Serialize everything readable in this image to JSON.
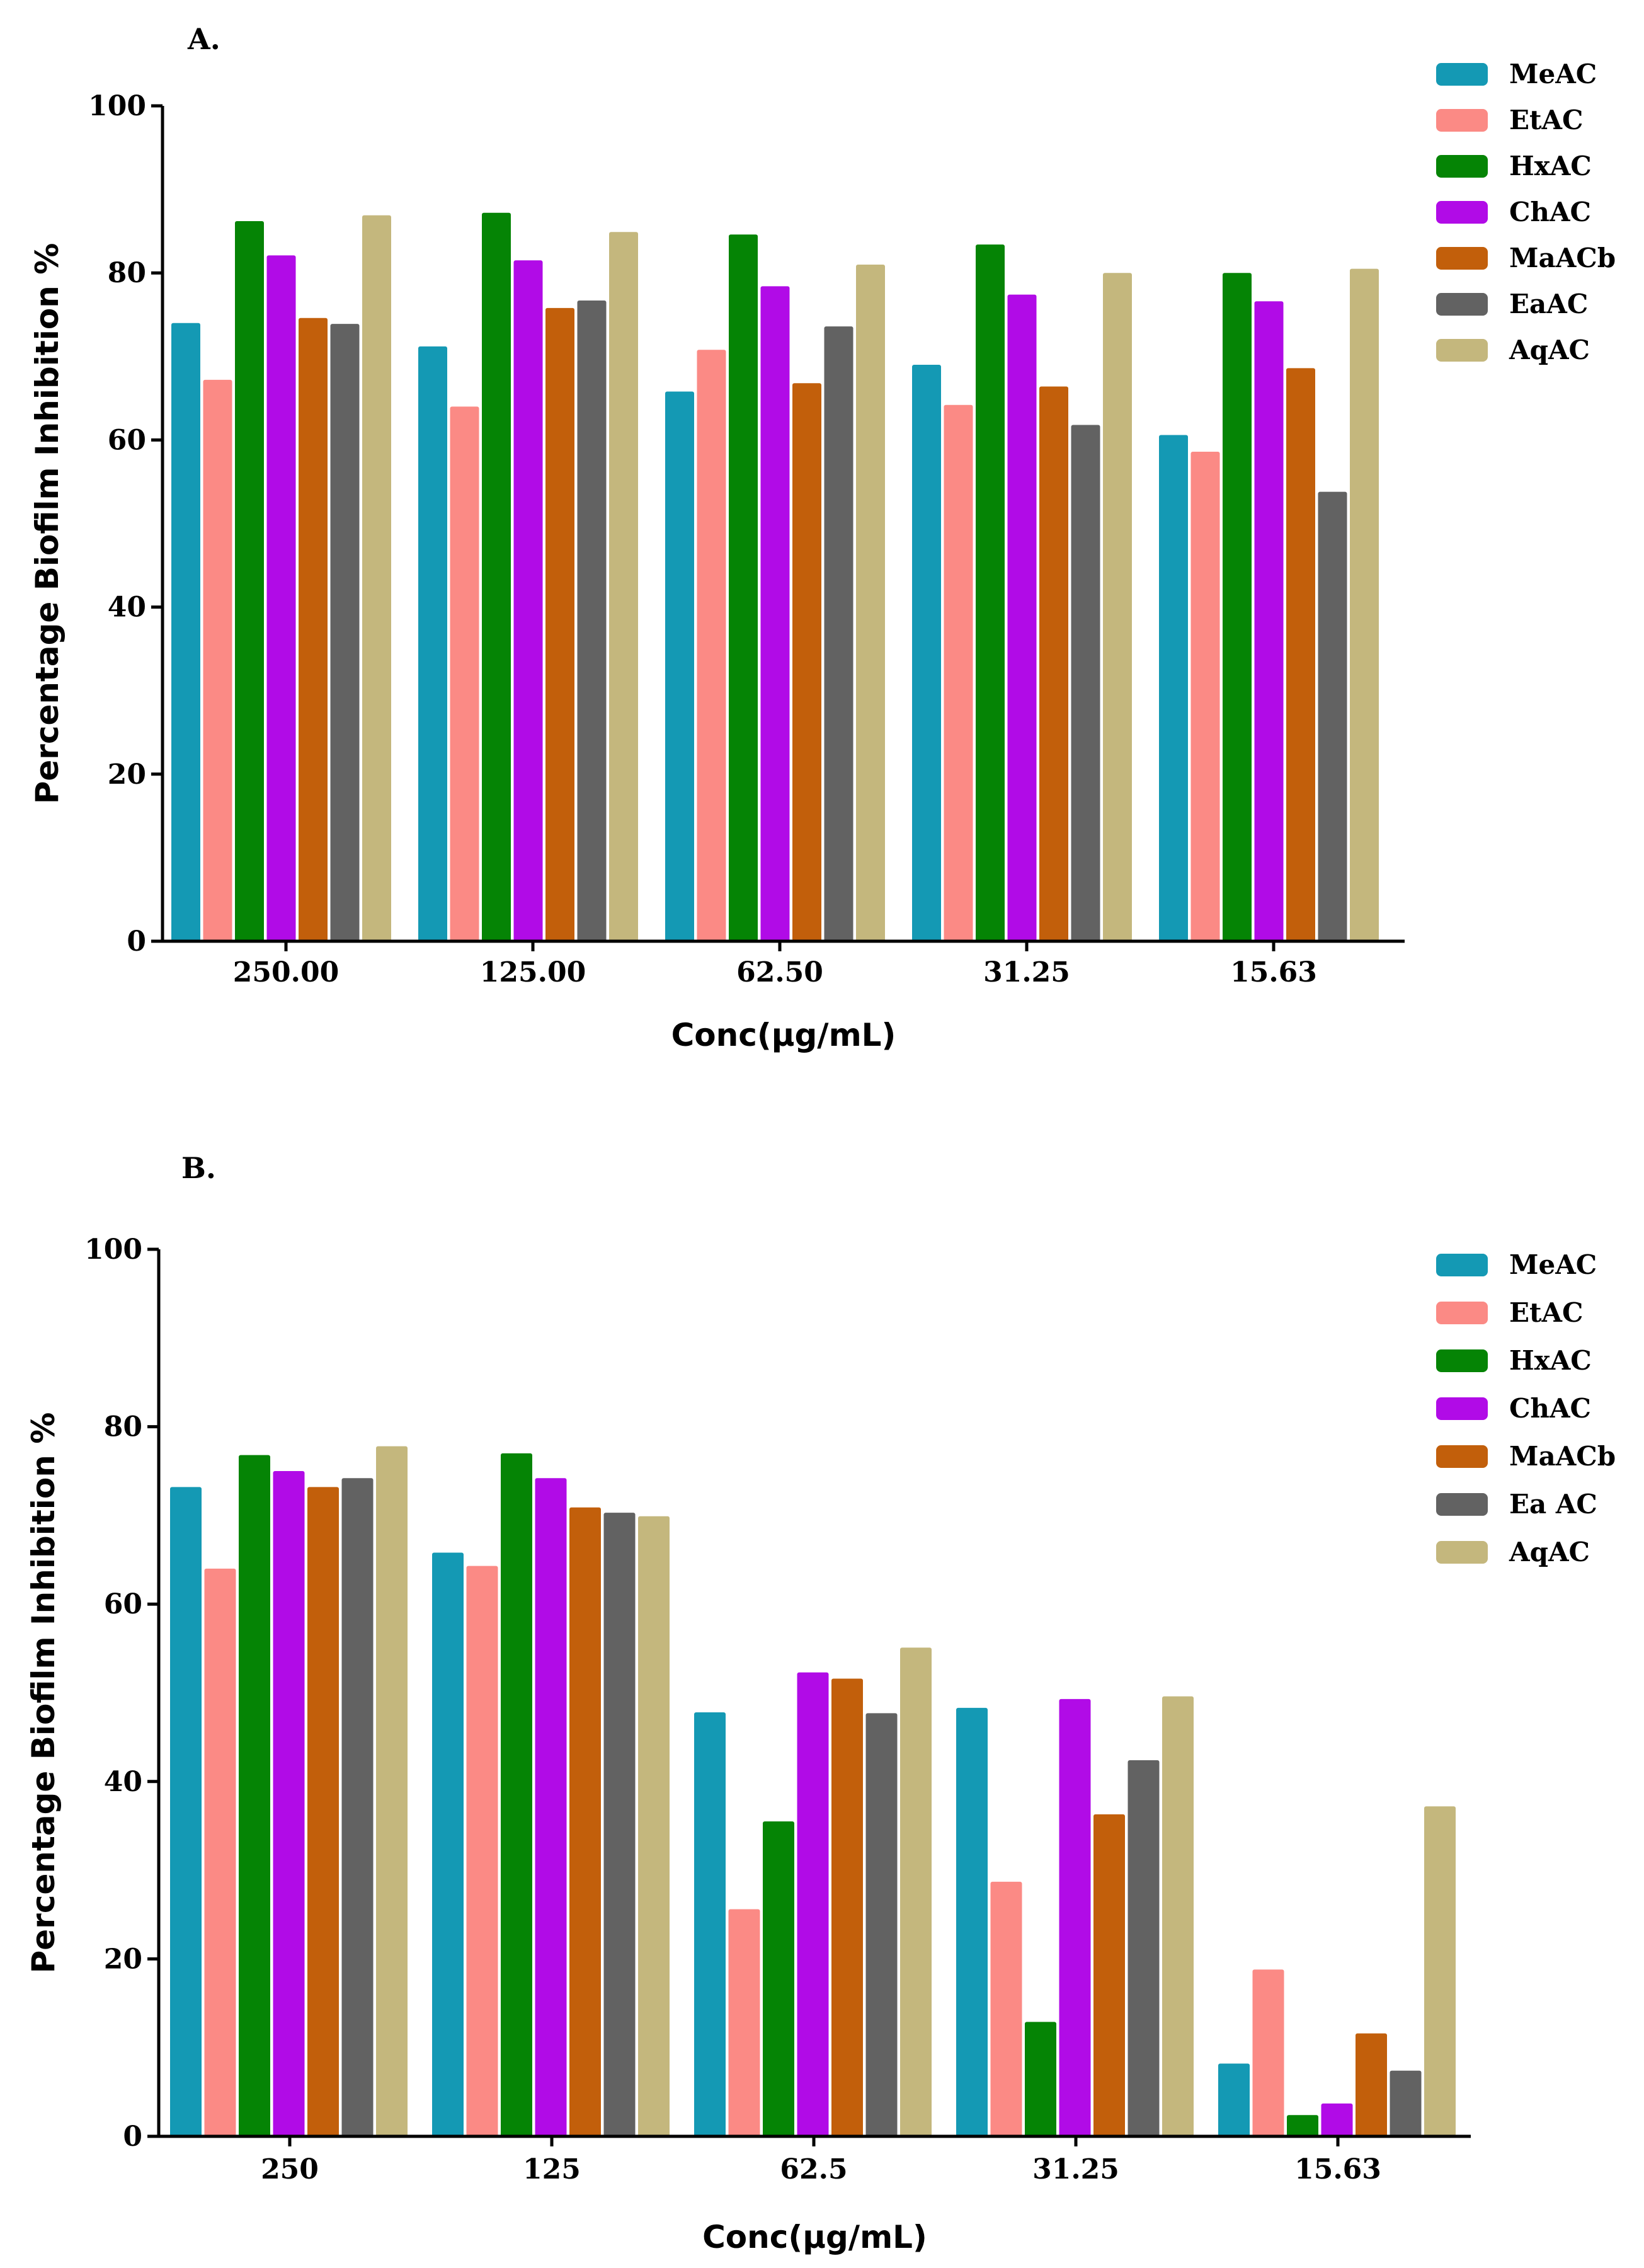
{
  "chart_data": [
    {
      "panel": "A.",
      "type": "bar",
      "xlabel": "Conc(µg/mL)",
      "ylabel": "Percentage Biofilm Inhibition %",
      "ylim": [
        0,
        100
      ],
      "yticks": [
        "0",
        "20",
        "40",
        "60",
        "80",
        "100"
      ],
      "categories": [
        "250.00",
        "125.00",
        "62.50",
        "31.25",
        "15.63"
      ],
      "legend_position": "top-right",
      "series": [
        {
          "name": "MeAC",
          "color": "#1499b4",
          "values": [
            74.0,
            71.2,
            65.8,
            69.0,
            60.6
          ]
        },
        {
          "name": "EtAC",
          "color": "#fb8a85",
          "values": [
            67.2,
            64.0,
            70.8,
            64.2,
            58.6
          ]
        },
        {
          "name": "HxAC",
          "color": "#058405",
          "values": [
            86.2,
            87.2,
            84.6,
            83.4,
            80.0
          ]
        },
        {
          "name": "ChAC",
          "color": "#b10be7",
          "values": [
            82.1,
            81.5,
            78.4,
            77.4,
            76.6
          ]
        },
        {
          "name": "MaACb",
          "color": "#c25f0b",
          "values": [
            74.6,
            75.8,
            66.8,
            66.4,
            68.6
          ]
        },
        {
          "name": "EaAC",
          "color": "#626262",
          "values": [
            73.9,
            76.7,
            73.6,
            61.8,
            53.8
          ]
        },
        {
          "name": "AqAC",
          "color": "#c4b77d",
          "values": [
            86.9,
            84.9,
            81.0,
            80.0,
            80.5
          ]
        }
      ]
    },
    {
      "panel": "B.",
      "type": "bar",
      "xlabel": "Conc(µg/mL)",
      "ylabel": "Percentage Biofilm Inhibition %",
      "ylim": [
        0,
        100
      ],
      "yticks": [
        "0",
        "20",
        "40",
        "60",
        "80",
        "100"
      ],
      "categories": [
        "250",
        "125",
        "62.5",
        "31.25",
        "15.63"
      ],
      "legend_position": "top-right",
      "series": [
        {
          "name": "MeAC",
          "color": "#1499b4",
          "values": [
            73.2,
            65.8,
            47.8,
            48.3,
            8.2
          ]
        },
        {
          "name": "EtAC",
          "color": "#fb8a85",
          "values": [
            64.0,
            64.3,
            25.6,
            28.7,
            18.8
          ]
        },
        {
          "name": "HxAC",
          "color": "#058405",
          "values": [
            76.8,
            77.0,
            35.5,
            12.9,
            2.4
          ]
        },
        {
          "name": "ChAC",
          "color": "#b10be7",
          "values": [
            75.0,
            74.2,
            52.3,
            49.3,
            3.7
          ]
        },
        {
          "name": "MaACb",
          "color": "#c25f0b",
          "values": [
            73.2,
            70.9,
            51.6,
            36.3,
            11.6
          ]
        },
        {
          "name": "Ea AC",
          "color": "#626262",
          "values": [
            74.2,
            70.3,
            47.7,
            42.4,
            7.4
          ]
        },
        {
          "name": "AqAC",
          "color": "#c4b77d",
          "values": [
            77.8,
            69.9,
            55.1,
            49.6,
            37.2
          ]
        }
      ]
    }
  ]
}
